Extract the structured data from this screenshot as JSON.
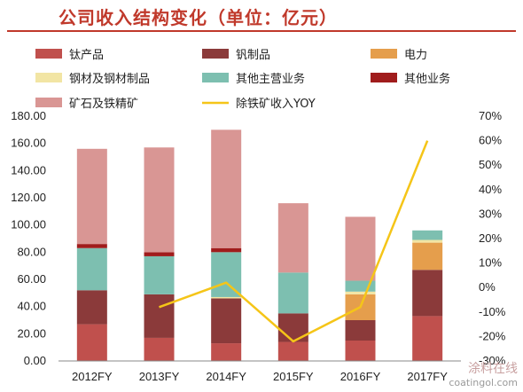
{
  "title": "公司收入结构变化（单位：亿元）",
  "watermark": {
    "line1": "涂料在线",
    "line2": "coatingol.com"
  },
  "chart_data": {
    "type": "bar",
    "stacked": true,
    "categories": [
      "2012FY",
      "2013FY",
      "2014FY",
      "2015FY",
      "2016FY",
      "2017FY"
    ],
    "left_axis": {
      "ylim": [
        0,
        180
      ],
      "ticks": [
        "0.00",
        "20.00",
        "40.00",
        "60.00",
        "80.00",
        "100.00",
        "120.00",
        "140.00",
        "160.00",
        "180.00"
      ]
    },
    "right_axis": {
      "ylim": [
        -30,
        70
      ],
      "ticks": [
        "-30%",
        "-20%",
        "-10%",
        "0%",
        "10%",
        "20%",
        "30%",
        "40%",
        "50%",
        "60%",
        "70%"
      ]
    },
    "grid": false,
    "legend_position": "top",
    "series": [
      {
        "name": "钛产品",
        "color": "#c0504d",
        "values": [
          27,
          17,
          13,
          14,
          15,
          33
        ]
      },
      {
        "name": "钒制品",
        "color": "#8b3a3a",
        "values": [
          25,
          32,
          33,
          21,
          15,
          34
        ]
      },
      {
        "name": "电力",
        "color": "#e59e4c",
        "values": [
          0,
          0,
          0,
          0,
          19,
          20
        ]
      },
      {
        "name": "钢材及钢材制品",
        "color": "#f2e5a4",
        "values": [
          0,
          0,
          1,
          0,
          2,
          2
        ]
      },
      {
        "name": "其他主营业务",
        "color": "#7dbfb0",
        "values": [
          31,
          28,
          33,
          30,
          8,
          7
        ]
      },
      {
        "name": "其他业务",
        "color": "#a01c1c",
        "values": [
          3,
          3,
          3,
          0,
          0,
          0
        ]
      },
      {
        "name": "矿石及铁精矿",
        "color": "#d99694",
        "values": [
          70,
          77,
          87,
          51,
          47,
          0
        ]
      }
    ],
    "line_series": {
      "name": "除铁矿收入YOY",
      "color": "#f5c518",
      "axis": "right",
      "values": [
        null,
        -8,
        2,
        -22,
        -8,
        60
      ]
    }
  }
}
